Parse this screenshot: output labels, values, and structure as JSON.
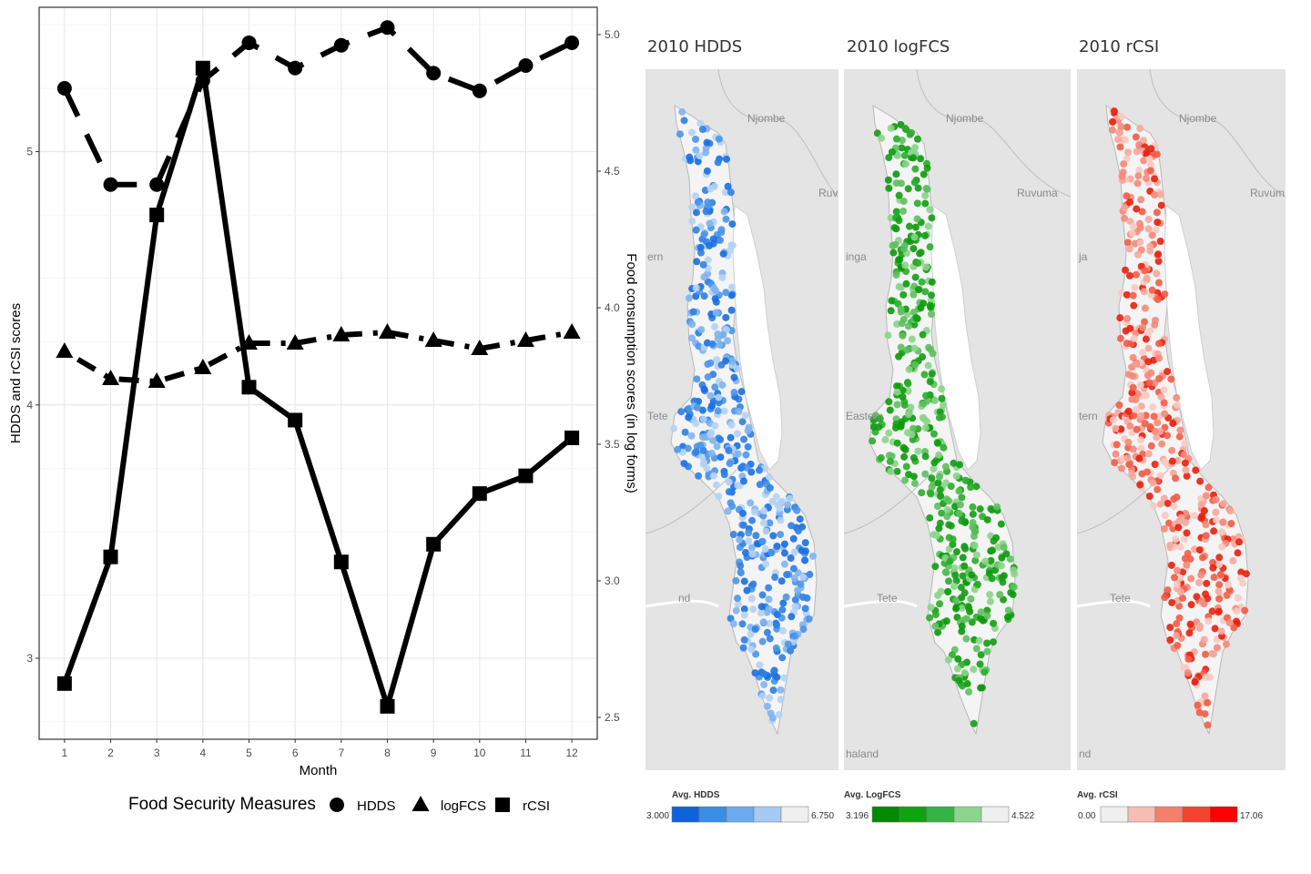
{
  "chart_data": [
    {
      "type": "line",
      "title": "",
      "xlabel": "Month",
      "ylabel": "HDDS and rCSI scores",
      "y2label": "Food consumption scores (in log forms)",
      "x": [
        1,
        2,
        3,
        4,
        5,
        6,
        7,
        8,
        9,
        10,
        11,
        12
      ],
      "xticks": [
        "1",
        "2",
        "3",
        "4",
        "5",
        "6",
        "7",
        "8",
        "9",
        "10",
        "11",
        "12"
      ],
      "xlim": [
        0.45,
        12.55
      ],
      "ylim": [
        2.68,
        5.57
      ],
      "yticks": [
        "3",
        "4",
        "5"
      ],
      "y2lim": [
        2.42,
        5.1
      ],
      "y2ticks": [
        "2.5",
        "3.0",
        "3.5",
        "4.0",
        "4.5",
        "5.0"
      ],
      "grid": true,
      "legend": {
        "title": "Food Security Measures",
        "position": "bottom",
        "items": [
          "HDDS",
          "logFCS",
          "rCSI"
        ]
      },
      "series": [
        {
          "name": "HDDS",
          "axis": "left",
          "marker": "circle",
          "line": "dashed",
          "values": [
            5.25,
            4.87,
            4.87,
            5.28,
            5.43,
            5.33,
            5.42,
            5.49,
            5.31,
            5.24,
            5.34,
            5.43
          ]
        },
        {
          "name": "logFCS",
          "axis": "right",
          "marker": "triangle",
          "line": "dotdash",
          "values": [
            3.84,
            3.74,
            3.73,
            3.78,
            3.87,
            3.87,
            3.9,
            3.91,
            3.88,
            3.85,
            3.88,
            3.91
          ]
        },
        {
          "name": "rCSI",
          "axis": "left",
          "marker": "square",
          "line": "solid",
          "values": [
            2.9,
            3.4,
            4.75,
            5.33,
            4.07,
            3.94,
            3.38,
            2.81,
            3.45,
            3.65,
            3.72,
            3.87
          ]
        }
      ]
    }
  ],
  "maps": [
    {
      "title": "2010 HDDS",
      "legend_title": "Avg. HDDS",
      "min": "3.000",
      "max": "6.750",
      "colors": [
        "#0d63d8",
        "#3b8ee6",
        "#6aaaed",
        "#a6caf2",
        "#efefef"
      ],
      "dot_palette": [
        "#1a6fe0",
        "#4a95e8",
        "#7fb3ef",
        "#b4d2f4",
        "#2f7fe3"
      ],
      "place_labels": [
        "Njombe",
        "Ruvu",
        "ern",
        "Tete",
        "nd"
      ]
    },
    {
      "title": "2010 logFCS",
      "legend_title": "Avg. LogFCS",
      "min": "3.196",
      "max": "4.522",
      "colors": [
        "#028a02",
        "#10a210",
        "#34b444",
        "#8dd58d",
        "#efefef"
      ],
      "dot_palette": [
        "#0a9a0a",
        "#139c13",
        "#2aac2a",
        "#5dbf5d",
        "#8ad48a"
      ],
      "place_labels": [
        "Njombe",
        "Ruvuma",
        "inga",
        "Eastern",
        "Tete",
        "haland"
      ]
    },
    {
      "title": "2010 rCSI",
      "legend_title": "Avg. rCSI",
      "min": "0.00",
      "max": "17.06",
      "colors": [
        "#efefef",
        "#f7bcb4",
        "#f57e6c",
        "#f2442e",
        "#ff0000"
      ],
      "dot_palette": [
        "#f9c9c2",
        "#f6a79b",
        "#f58878",
        "#f25c48",
        "#e8200f"
      ],
      "place_labels": [
        "Njombe",
        "Ruvum",
        "ja",
        "tern",
        "Tete",
        "nd"
      ]
    }
  ]
}
